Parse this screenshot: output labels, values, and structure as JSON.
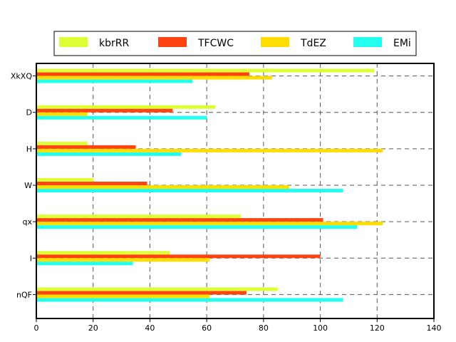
{
  "chart_data": {
    "type": "bar",
    "orientation": "horizontal",
    "title": "",
    "xlabel": "",
    "ylabel": "",
    "categories": [
      "XkXQ",
      "D",
      "H",
      "W",
      "qx",
      "I",
      "nQF"
    ],
    "series": [
      {
        "name": "kbrRR",
        "color": "#ddff33",
        "values": [
          119,
          63,
          18,
          20,
          72,
          47,
          85
        ]
      },
      {
        "name": "TFCWC",
        "color": "#ff4411",
        "values": [
          75,
          48,
          35,
          39,
          101,
          100,
          74
        ]
      },
      {
        "name": "TdEZ",
        "color": "#ffdd00",
        "values": [
          83,
          18,
          122,
          89,
          122,
          61,
          61
        ]
      },
      {
        "name": "EMi",
        "color": "#22ffee",
        "values": [
          55,
          60,
          51,
          108,
          113,
          34,
          108
        ]
      }
    ],
    "xlim": [
      0,
      140
    ],
    "xticks": [
      "0",
      "20",
      "40",
      "60",
      "80",
      "100",
      "120",
      "140"
    ],
    "grid": true,
    "legend_position": "top"
  }
}
